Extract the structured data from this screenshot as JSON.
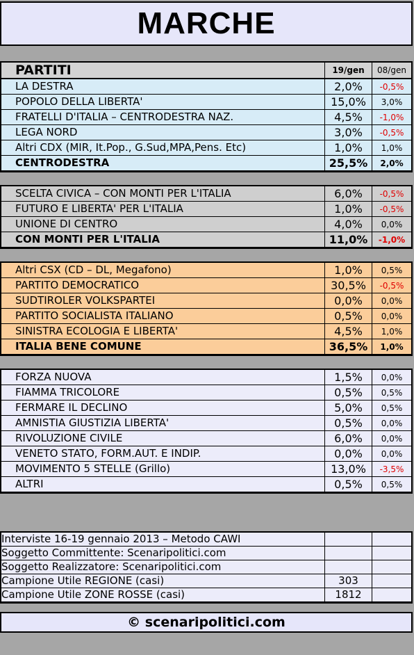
{
  "title": "MARCHE",
  "header": {
    "label": "PARTITI",
    "col1": "19/gen",
    "col2": "08/gen"
  },
  "groups": [
    {
      "rows": [
        {
          "name": "LA DESTRA",
          "v1": "2,0%",
          "v2": "-0,5%",
          "neg": true
        },
        {
          "name": "POPOLO DELLA LIBERTA'",
          "v1": "15,0%",
          "v2": "3,0%",
          "neg": false
        },
        {
          "name": "FRATELLI D'ITALIA – CENTRODESTRA NAZ.",
          "v1": "4,5%",
          "v2": "-1,0%",
          "neg": true
        },
        {
          "name": "LEGA NORD",
          "v1": "3,0%",
          "v2": "-0,5%",
          "neg": true
        },
        {
          "name": "Altri CDX (MIR, It.Pop., G.Sud,MPA,Pens. Etc)",
          "v1": "1,0%",
          "v2": "1,0%",
          "neg": false
        },
        {
          "name": "CENTRODESTRA",
          "v1": "25,5%",
          "v2": "2,0%",
          "neg": false,
          "total": true
        }
      ]
    },
    {
      "rows": [
        {
          "name": "SCELTA CIVICA – CON MONTI PER L'ITALIA",
          "v1": "6,0%",
          "v2": "-0,5%",
          "neg": true
        },
        {
          "name": "FUTURO E LIBERTA' PER L'ITALIA",
          "v1": "1,0%",
          "v2": "-0,5%",
          "neg": true
        },
        {
          "name": "UNIONE DI CENTRO",
          "v1": "4,0%",
          "v2": "0,0%",
          "neg": false
        },
        {
          "name": "CON MONTI PER L'ITALIA",
          "v1": "11,0%",
          "v2": "-1,0%",
          "neg": true,
          "total": true
        }
      ]
    },
    {
      "rows": [
        {
          "name": "Altri CSX (CD – DL, Megafono)",
          "v1": "1,0%",
          "v2": "0,5%",
          "neg": false
        },
        {
          "name": "PARTITO DEMOCRATICO",
          "v1": "30,5%",
          "v2": "-0,5%",
          "neg": true
        },
        {
          "name": "SUDTIROLER VOLKSPARTEI",
          "v1": "0,0%",
          "v2": "0,0%",
          "neg": false
        },
        {
          "name": "PARTITO SOCIALISTA ITALIANO",
          "v1": "0,5%",
          "v2": "0,0%",
          "neg": false
        },
        {
          "name": "SINISTRA ECOLOGIA E LIBERTA'",
          "v1": "4,5%",
          "v2": "1,0%",
          "neg": false
        },
        {
          "name": "ITALIA BENE COMUNE",
          "v1": "36,5%",
          "v2": "1,0%",
          "neg": false,
          "total": true
        }
      ]
    },
    {
      "rows": [
        {
          "name": "FORZA NUOVA",
          "v1": "1,5%",
          "v2": "0,0%",
          "neg": false
        },
        {
          "name": "FIAMMA TRICOLORE",
          "v1": "0,5%",
          "v2": "0,5%",
          "neg": false
        },
        {
          "name": "FERMARE IL DECLINO",
          "v1": "5,0%",
          "v2": "0,5%",
          "neg": false
        },
        {
          "name": "AMNISTIA GIUSTIZIA LIBERTA'",
          "v1": "0,5%",
          "v2": "0,0%",
          "neg": false
        },
        {
          "name": "RIVOLUZIONE CIVILE",
          "v1": "6,0%",
          "v2": "0,0%",
          "neg": false
        },
        {
          "name": "VENETO STATO, FORM.AUT. E INDIP.",
          "v1": "0,0%",
          "v2": "0,0%",
          "neg": false
        },
        {
          "name": "MOVIMENTO 5 STELLE (Grillo)",
          "v1": "13,0%",
          "v2": "-3,5%",
          "neg": true
        },
        {
          "name": "ALTRI",
          "v1": "0,5%",
          "v2": "0,5%",
          "neg": false
        }
      ]
    }
  ],
  "info": [
    {
      "text": "Interviste 16-19 gennaio 2013 – Metodo CAWI",
      "value": ""
    },
    {
      "text": "Soggetto Committente: Scenaripolitici.com",
      "value": ""
    },
    {
      "text": "Soggetto Realizzatore: Scenaripolitici.com",
      "value": ""
    },
    {
      "text": "Campione Utile REGIONE (casi)",
      "value": "303"
    },
    {
      "text": "Campione Utile ZONE ROSSE (casi)",
      "value": "1812"
    }
  ],
  "footer": "© scenaripolitici.com",
  "colors": {
    "blue": "#d7ecf7",
    "gray": "#cfcfcf",
    "orange": "#fbcd9a",
    "lavender": "#ececfa",
    "negative": "#e00000"
  }
}
